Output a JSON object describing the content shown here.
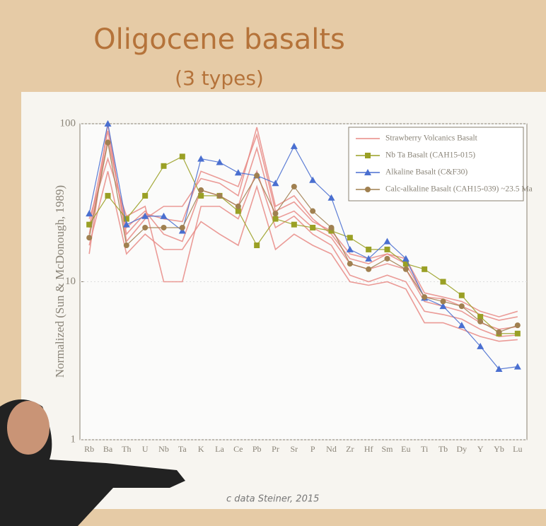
{
  "title": "Oligocene basalts",
  "subtitle": "(3 types)",
  "footer": "c data Steiner, 2015",
  "chart_data": {
    "type": "line",
    "log_scale_y": true,
    "grid": true,
    "legend": "top-right",
    "y_label": "Normalized (Sun & McDonough, 1989)",
    "categories": [
      "Rb",
      "Ba",
      "Th",
      "U",
      "Nb",
      "Ta",
      "K",
      "La",
      "Ce",
      "Pb",
      "Pr",
      "Sr",
      "P",
      "Nd",
      "Zr",
      "Hf",
      "Sm",
      "Eu",
      "Ti",
      "Tb",
      "Dy",
      "Y",
      "Yb",
      "Lu"
    ],
    "ylim": [
      1,
      100
    ],
    "yticks": [
      1,
      10,
      100
    ],
    "series": [
      {
        "name": "Strawberry Volcanics Basalt",
        "color": "#e88a85",
        "marker": "none",
        "values": [
          [
            15,
            100,
            18,
            25,
            30,
            30,
            45,
            42,
            35,
            95,
            30,
            35,
            25,
            20,
            14,
            13,
            15,
            14,
            8.5,
            8,
            7.5,
            6.5,
            6,
            6.5
          ],
          [
            20,
            80,
            22,
            28,
            20,
            18,
            38,
            35,
            30,
            70,
            25,
            28,
            22,
            19,
            13,
            12,
            13,
            12,
            7.5,
            7,
            6.5,
            5.5,
            5,
            5.2
          ],
          [
            25,
            60,
            26,
            30,
            10,
            10,
            30,
            30,
            25,
            50,
            22,
            26,
            20,
            17,
            11,
            10,
            11,
            10,
            6.5,
            6.2,
            5.8,
            5,
            4.5,
            4.6
          ],
          [
            17,
            50,
            15,
            20,
            16,
            16,
            24,
            20,
            17,
            40,
            16,
            20,
            17,
            15,
            10,
            9.5,
            10,
            9,
            5.5,
            5.5,
            5,
            4.5,
            4.2,
            4.3
          ],
          [
            22,
            90,
            20,
            27,
            25,
            24,
            50,
            45,
            40,
            85,
            28,
            32,
            24,
            21,
            15,
            14,
            15,
            13,
            8,
            7.8,
            7,
            6.2,
            5.7,
            6
          ]
        ]
      },
      {
        "name": "Nb Ta Basalt (CAH15-015)",
        "color": "#9aa025",
        "marker": "square",
        "values": [
          23,
          35,
          25,
          35,
          54,
          62,
          35,
          35,
          28,
          17,
          25,
          23,
          22,
          21,
          19,
          16,
          16,
          13,
          12,
          10,
          8.2,
          6,
          4.7,
          4.7
        ]
      },
      {
        "name": "Alkaline Basalt (C&F30)",
        "color": "#4a6fd0",
        "marker": "triangle",
        "values": [
          27,
          100,
          23,
          26,
          26,
          21,
          60,
          57,
          49,
          47,
          42,
          72,
          44,
          34,
          16,
          14,
          18,
          14,
          7.9,
          7,
          5.3,
          3.9,
          2.8,
          2.9
        ]
      },
      {
        "name": "Calc-alkaline Basalt (CAH15-039) ~23.5 Ma",
        "color": "#a08050",
        "marker": "circle",
        "values": [
          19,
          76,
          17,
          22,
          22,
          22,
          38,
          35,
          30,
          47,
          27,
          40,
          28,
          22,
          13,
          12,
          14,
          12,
          8,
          7.5,
          7,
          5.6,
          4.8,
          5.3
        ]
      }
    ]
  }
}
